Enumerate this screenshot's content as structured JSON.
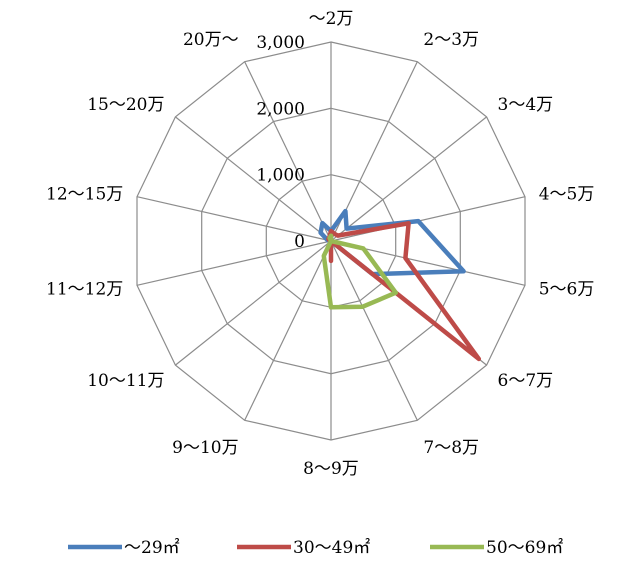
{
  "chart_data": {
    "type": "radar",
    "categories": [
      "～2万",
      "2～3万",
      "3～4万",
      "4～5万",
      "5～6万",
      "6～7万",
      "7～8万",
      "8～9万",
      "9～10万",
      "10～11万",
      "11～12万",
      "12～15万",
      "15～20万",
      "20万～"
    ],
    "rlim": [
      0,
      3000
    ],
    "ticks": [
      0,
      1000,
      2000,
      3000
    ],
    "tick_labels": [
      "0",
      "1,000",
      "2,000",
      "3,000"
    ],
    "grid": true,
    "legend_position": "bottom",
    "series": [
      {
        "name": "～29㎡",
        "color": "#4a7ebb",
        "values": [
          150,
          500,
          300,
          1350,
          2050,
          800,
          0,
          0,
          0,
          0,
          0,
          50,
          200,
          300
        ]
      },
      {
        "name": "30～49㎡",
        "color": "#be4b48",
        "values": [
          150,
          120,
          130,
          1200,
          1150,
          2850,
          0,
          300,
          0,
          0,
          0,
          20,
          50,
          60
        ]
      },
      {
        "name": "50～69㎡",
        "color": "#98b954",
        "values": [
          80,
          0,
          0,
          0,
          500,
          1250,
          1100,
          1000,
          250,
          0,
          0,
          0,
          0,
          50
        ]
      }
    ]
  }
}
